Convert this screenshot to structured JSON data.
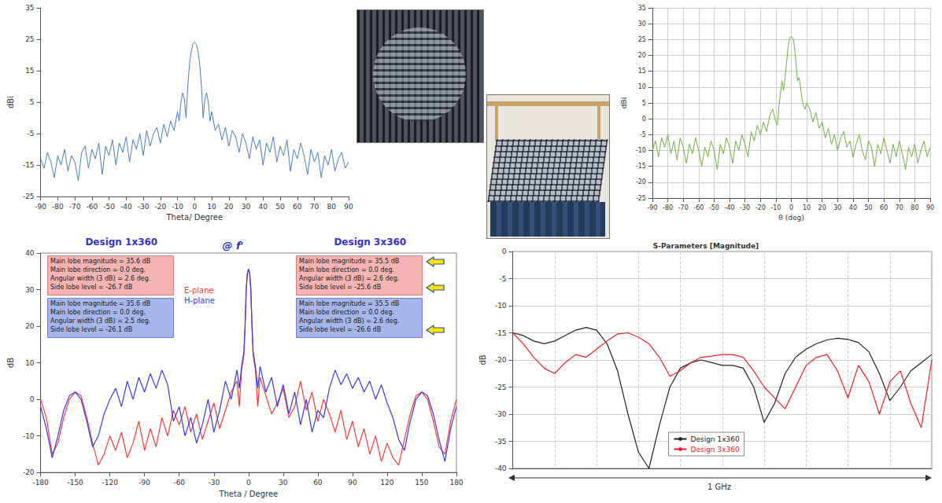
{
  "chart_data": [
    {
      "type": "line",
      "xlabel": "Theta/ Degree",
      "ylabel": "dBi",
      "x": [
        -90,
        -88,
        -86,
        -84,
        -82,
        -80,
        -78,
        -76,
        -74,
        -72,
        -70,
        -68,
        -66,
        -64,
        -62,
        -60,
        -58,
        -56,
        -54,
        -52,
        -50,
        -48,
        -46,
        -44,
        -42,
        -40,
        -38,
        -36,
        -34,
        -32,
        -30,
        -28,
        -26,
        -24,
        -22,
        -20,
        -18,
        -16,
        -14,
        -12,
        -10,
        -9,
        -8,
        -7,
        -6,
        -5,
        -4,
        -3,
        -2,
        -1,
        0,
        1,
        2,
        3,
        4,
        5,
        6,
        7,
        8,
        9,
        10,
        12,
        14,
        16,
        18,
        20,
        22,
        24,
        26,
        28,
        30,
        32,
        34,
        36,
        38,
        40,
        42,
        44,
        46,
        48,
        50,
        52,
        54,
        56,
        58,
        60,
        62,
        64,
        66,
        68,
        70,
        72,
        74,
        76,
        78,
        80,
        82,
        84,
        86,
        88,
        90
      ],
      "series": [
        {
          "color": "#4a7ebb",
          "values": [
            -13,
            -16,
            -11,
            -14,
            -19,
            -12,
            -15,
            -10,
            -17,
            -12,
            -14,
            -20,
            -11,
            -9,
            -16,
            -10,
            -13,
            -8,
            -18,
            -9,
            -12,
            -7,
            -15,
            -8,
            -11,
            -6,
            -14,
            -7,
            -10,
            -5,
            -12,
            -4,
            -9,
            -5,
            -3,
            -8,
            -2,
            -6,
            -1,
            -4,
            2,
            -1,
            5,
            8,
            6,
            0,
            10,
            17,
            21,
            23.5,
            24,
            23.5,
            21,
            17,
            10,
            0,
            6,
            8,
            5,
            -1,
            2,
            -4,
            -2,
            -7,
            -3,
            -9,
            -4,
            -6,
            -11,
            -5,
            -8,
            -13,
            -6,
            -10,
            -7,
            -15,
            -8,
            -11,
            -6,
            -14,
            -9,
            -12,
            -7,
            -17,
            -10,
            -13,
            -8,
            -12,
            -18,
            -10,
            -14,
            -11,
            -19,
            -12,
            -15,
            -10,
            -17,
            -13,
            -11,
            -16,
            -14
          ]
        }
      ],
      "xlim": [
        -90,
        90
      ],
      "xticks": [
        -90,
        -80,
        -70,
        -60,
        -50,
        -40,
        -30,
        -20,
        -10,
        0,
        10,
        20,
        30,
        40,
        50,
        60,
        70,
        80,
        90
      ],
      "ylim": [
        -25,
        35
      ],
      "yticks": [
        -25,
        -15,
        -5,
        5,
        15,
        25,
        35
      ],
      "grid": false
    },
    {
      "type": "line",
      "xlabel": "θ (deg)",
      "ylabel": "dBi",
      "x": [
        -90,
        -88,
        -86,
        -84,
        -82,
        -80,
        -78,
        -76,
        -74,
        -72,
        -70,
        -68,
        -66,
        -64,
        -62,
        -60,
        -58,
        -56,
        -54,
        -52,
        -50,
        -48,
        -46,
        -44,
        -42,
        -40,
        -38,
        -36,
        -34,
        -32,
        -30,
        -28,
        -26,
        -24,
        -22,
        -20,
        -18,
        -16,
        -14,
        -12,
        -10,
        -9,
        -8,
        -7,
        -6,
        -5,
        -4,
        -3,
        -2,
        -1,
        0,
        1,
        2,
        3,
        4,
        5,
        6,
        7,
        8,
        9,
        10,
        12,
        14,
        16,
        18,
        20,
        22,
        24,
        26,
        28,
        30,
        32,
        34,
        36,
        38,
        40,
        42,
        44,
        46,
        48,
        50,
        52,
        54,
        56,
        58,
        60,
        62,
        64,
        66,
        68,
        70,
        72,
        74,
        76,
        78,
        80,
        82,
        84,
        86,
        88,
        90
      ],
      "series": [
        {
          "color": "#70ad47",
          "values": [
            -10,
            -7,
            -12,
            -6,
            -9,
            -5,
            -11,
            -7,
            -13,
            -6,
            -9,
            -14,
            -8,
            -11,
            -6,
            -10,
            -15,
            -9,
            -12,
            -7,
            -10,
            -16,
            -8,
            -11,
            -6,
            -9,
            -14,
            -7,
            -10,
            -5,
            -8,
            -12,
            -4,
            -7,
            -2,
            -5,
            -1,
            -4,
            1,
            3,
            -1,
            -2,
            4,
            8,
            12,
            9,
            13,
            18,
            23,
            25.5,
            26,
            25.5,
            23,
            18,
            12,
            13,
            10,
            6,
            4,
            3,
            5,
            3,
            -1,
            2,
            -3,
            -1,
            -6,
            -3,
            -8,
            -5,
            -10,
            -6,
            -4,
            -9,
            -7,
            -12,
            -8,
            -5,
            -10,
            -13,
            -7,
            -9,
            -15,
            -8,
            -11,
            -6,
            -10,
            -14,
            -8,
            -12,
            -7,
            -11,
            -16,
            -9,
            -12,
            -8,
            -14,
            -10,
            -7,
            -12,
            -9
          ]
        }
      ],
      "xlim": [
        -90,
        90
      ],
      "xticks": [
        -90,
        -80,
        -70,
        -60,
        -50,
        -40,
        -30,
        -20,
        -10,
        0,
        10,
        20,
        30,
        40,
        50,
        60,
        70,
        80,
        90
      ],
      "ylim": [
        -25,
        35
      ],
      "yticks": [
        -25,
        -20,
        -15,
        -10,
        -5,
        0,
        5,
        10,
        15,
        20,
        25,
        30,
        35
      ],
      "grid": true
    },
    {
      "type": "line",
      "title": "@ f'",
      "annotations": [
        "Design 1x360",
        "Design 3x360"
      ],
      "boxes": [
        [
          "Main lobe magnitude = 35.6 dB",
          "Main lobe direction = 0.0 deg.",
          "Angular width (3 dB) = 2.6 deg.",
          "Side lobe level = -26.7 dB"
        ],
        [
          "Main lobe magnitude = 35.6 dB",
          "Main lobe direction = 0.0 deg.",
          "Angular width (3 dB) = 2.5 deg.",
          "Side lobe level = -26.1 dB"
        ],
        [
          "Main lobe magnitude = 35.5 dB",
          "Main lobe direction = 0.0 deg.",
          "Angular width (3 dB) = 2.6 deg.",
          "Side lobe level = -25.6 dB"
        ],
        [
          "Main lobe magnitude = 35.5 dB",
          "Main lobe direction = 0.0 deg.",
          "Angular width (3 dB) = 2.6 deg.",
          "Side lobe level = -26.6 dB"
        ]
      ],
      "xlabel": "Theta / Degree",
      "ylabel": "dB",
      "x": [
        -180,
        -175,
        -170,
        -165,
        -160,
        -155,
        -150,
        -145,
        -140,
        -135,
        -130,
        -125,
        -120,
        -115,
        -110,
        -105,
        -100,
        -95,
        -90,
        -85,
        -80,
        -75,
        -70,
        -65,
        -60,
        -55,
        -50,
        -45,
        -40,
        -35,
        -30,
        -25,
        -20,
        -15,
        -10,
        -8,
        -6,
        -4,
        -3,
        -2,
        -1,
        0,
        1,
        2,
        3,
        4,
        6,
        8,
        10,
        15,
        20,
        25,
        30,
        35,
        40,
        45,
        50,
        55,
        60,
        65,
        70,
        75,
        80,
        85,
        90,
        95,
        100,
        105,
        110,
        115,
        120,
        125,
        130,
        135,
        140,
        145,
        150,
        155,
        160,
        165,
        170,
        175,
        180
      ],
      "series": [
        {
          "name": "E-plane",
          "color": "#f03c3c",
          "values": [
            0,
            -5,
            -15,
            -12,
            -5,
            0,
            2,
            1,
            -5,
            -12,
            -18,
            -15,
            -10,
            -14,
            -9,
            -16,
            -12,
            -6,
            -14,
            -8,
            -13,
            -5,
            -10,
            -3,
            -7,
            -2,
            -9,
            -4,
            -11,
            -6,
            -1,
            -8,
            -3,
            2,
            5,
            -2,
            8,
            12,
            20,
            30,
            34.5,
            35.6,
            34.5,
            30,
            20,
            12,
            8,
            -2,
            6,
            1,
            -4,
            -1,
            3,
            -5,
            -2,
            5,
            -3,
            2,
            -6,
            0,
            -4,
            -9,
            -3,
            -11,
            -6,
            -13,
            -8,
            -15,
            -10,
            -17,
            -12,
            -16,
            -18,
            -11,
            -4,
            1,
            2,
            0,
            -6,
            -13,
            -15,
            -6,
            0
          ]
        },
        {
          "name": "H-plane",
          "color": "#3a3adf",
          "values": [
            -2,
            -8,
            -16,
            -10,
            -3,
            1,
            2,
            0,
            -6,
            -13,
            -10,
            -4,
            0,
            3,
            -2,
            5,
            0,
            6,
            2,
            7,
            3,
            8,
            4,
            -6,
            -2,
            -10,
            -5,
            -12,
            -7,
            0,
            -9,
            -3,
            5,
            0,
            8,
            3,
            9,
            13,
            20,
            30,
            34.5,
            35.6,
            34.5,
            30,
            20,
            13,
            9,
            3,
            9,
            2,
            6,
            -2,
            4,
            -4,
            2,
            -7,
            0,
            -9,
            -3,
            -5,
            3,
            8,
            4,
            7,
            3,
            6,
            2,
            5,
            0,
            4,
            -1,
            -5,
            -11,
            -14,
            -6,
            0,
            2,
            1,
            -4,
            -11,
            -17,
            -8,
            -2
          ]
        }
      ],
      "xlim": [
        -180,
        180
      ],
      "xticks": [
        -180,
        -150,
        -120,
        -90,
        -60,
        -30,
        0,
        30,
        60,
        90,
        120,
        150,
        180
      ],
      "ylim": [
        -20,
        40
      ],
      "yticks": [
        -20,
        -10,
        0,
        10,
        20,
        30,
        40
      ],
      "grid": false,
      "legend": "upper left"
    },
    {
      "type": "line",
      "title": "S-Parameters [Magnitude]",
      "xlabel": "1 GHz",
      "ylabel": "dB",
      "x": [
        0,
        0.025,
        0.05,
        0.075,
        0.1,
        0.125,
        0.15,
        0.175,
        0.2,
        0.225,
        0.25,
        0.275,
        0.3,
        0.325,
        0.35,
        0.375,
        0.4,
        0.425,
        0.45,
        0.475,
        0.5,
        0.525,
        0.55,
        0.575,
        0.6,
        0.625,
        0.65,
        0.675,
        0.7,
        0.725,
        0.75,
        0.775,
        0.8,
        0.825,
        0.85,
        0.875,
        0.9,
        0.925,
        0.95,
        0.975,
        1
      ],
      "series": [
        {
          "name": "Design 1x360",
          "color": "#222222",
          "values": [
            -15,
            -15.5,
            -16.5,
            -17,
            -16.5,
            -15.5,
            -14.5,
            -14,
            -14.5,
            -17,
            -22,
            -30,
            -37,
            -40,
            -32,
            -25,
            -21.5,
            -20.5,
            -20,
            -20.5,
            -21,
            -21,
            -21.5,
            -25,
            -31.5,
            -28,
            -22.5,
            -19.5,
            -18,
            -17,
            -16.3,
            -16,
            -16.2,
            -16.8,
            -18.5,
            -22.5,
            -27.5,
            -25,
            -22,
            -20.5,
            -19
          ]
        },
        {
          "name": "Design 3x360",
          "color": "#e8202a",
          "values": [
            -15,
            -17,
            -19.5,
            -21.5,
            -22.5,
            -20.5,
            -19,
            -19.5,
            -18,
            -16.5,
            -15.2,
            -15,
            -15.8,
            -17,
            -19.5,
            -23,
            -22,
            -20.5,
            -19.5,
            -19.3,
            -19,
            -19,
            -19.5,
            -22,
            -25,
            -27,
            -29,
            -25,
            -21,
            -19.5,
            -19,
            -22,
            -27,
            -21,
            -24,
            -30,
            -24,
            -22,
            -28,
            -32.5,
            -20
          ]
        }
      ],
      "xlim": [
        0,
        1
      ],
      "xticks": [
        0,
        0.1,
        0.2,
        0.3,
        0.4,
        0.5,
        0.6,
        0.7,
        0.8,
        0.9,
        1
      ],
      "ylim": [
        -40,
        0
      ],
      "yticks": [
        -40,
        -35,
        -30,
        -25,
        -20,
        -15,
        -10,
        -5,
        0
      ],
      "grid": true,
      "tick_labels": "y",
      "legend": "lower center"
    }
  ]
}
